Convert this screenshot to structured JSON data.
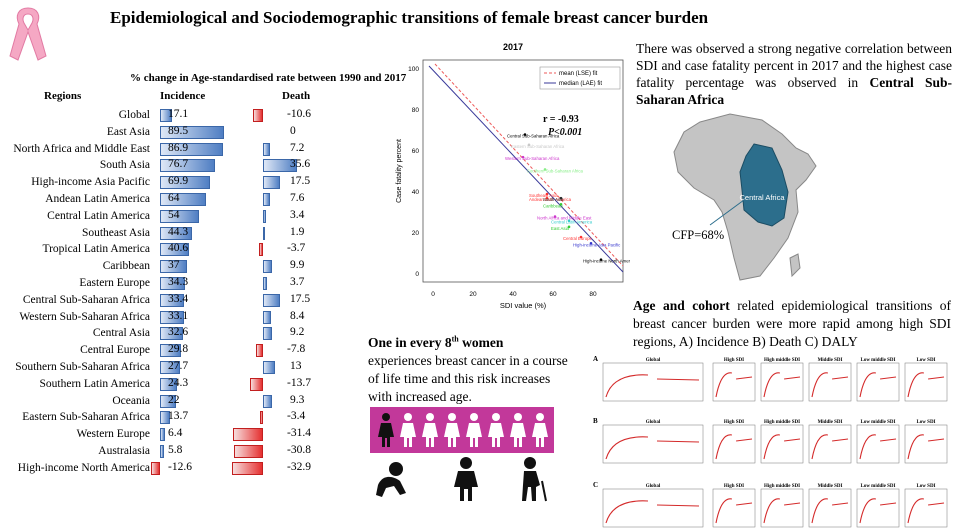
{
  "title": "Epidemiological and Sociodemographic transitions of female breast cancer burden",
  "table": {
    "title": "% change in Age-standardised rate between 1990 and 2017",
    "col_regions": "Regions",
    "col_incidence": "Incidence",
    "col_death": "Death",
    "rows": [
      {
        "region": "Global",
        "incidence": "17.1",
        "death": "-10.6"
      },
      {
        "region": "East Asia",
        "incidence": "89.5",
        "death": "0"
      },
      {
        "region": "North Africa and Middle East",
        "incidence": "86.9",
        "death": "7.2"
      },
      {
        "region": "South Asia",
        "incidence": "76.7",
        "death": "35.6"
      },
      {
        "region": "High-income Asia Pacific",
        "incidence": "69.9",
        "death": "17.5"
      },
      {
        "region": "Andean Latin America",
        "incidence": "64",
        "death": "7.6"
      },
      {
        "region": "Central Latin America",
        "incidence": "54",
        "death": "3.4"
      },
      {
        "region": "Southeast Asia",
        "incidence": "44.3",
        "death": "1.9"
      },
      {
        "region": "Tropical Latin America",
        "incidence": "40.6",
        "death": "-3.7"
      },
      {
        "region": "Caribbean",
        "incidence": "37",
        "death": "9.9"
      },
      {
        "region": "Eastern Europe",
        "incidence": "34.3",
        "death": "3.7"
      },
      {
        "region": "Central Sub-Saharan Africa",
        "incidence": "33.4",
        "death": "17.5"
      },
      {
        "region": "Western Sub-Saharan Africa",
        "incidence": "33.1",
        "death": "8.4"
      },
      {
        "region": "Central Asia",
        "incidence": "32.6",
        "death": "9.2"
      },
      {
        "region": "Central Europe",
        "incidence": "29.8",
        "death": "-7.8"
      },
      {
        "region": "Southern Sub-Saharan Africa",
        "incidence": "27.7",
        "death": "13"
      },
      {
        "region": "Southern Latin America",
        "incidence": "24.3",
        "death": "-13.7"
      },
      {
        "region": "Oceania",
        "incidence": "22",
        "death": "9.3"
      },
      {
        "region": "Eastern Sub-Saharan Africa",
        "incidence": "13.7",
        "death": "-3.4"
      },
      {
        "region": "Western Europe",
        "incidence": "6.4",
        "death": "-31.4"
      },
      {
        "region": "Australasia",
        "incidence": "5.8",
        "death": "-30.8"
      },
      {
        "region": "High-income North America",
        "incidence": "-12.6",
        "death": "-32.9"
      }
    ]
  },
  "scatter": {
    "title": "2017",
    "xlabel": "SDI value (%)",
    "ylabel": "Case fatality percent",
    "xticks": [
      "0",
      "20",
      "40",
      "60",
      "80"
    ],
    "yticks": [
      "0",
      "20",
      "40",
      "60",
      "80",
      "100"
    ],
    "legend": [
      "mean (LSE) fit",
      "median (LAE) fit"
    ],
    "r_text": "r = -0.93",
    "p_text": "P<0.001",
    "points": [
      {
        "label": "Central Sub-Saharan Africa",
        "color": "#000000"
      },
      {
        "label": "Eastern Sub-Saharan Africa",
        "color": "#c8c8c8"
      },
      {
        "label": "Western Sub-Saharan Africa",
        "color": "#cc33cc"
      },
      {
        "label": "Southern Sub-Saharan Africa",
        "color": "#88ee88"
      },
      {
        "label": "Southeast Asia",
        "color": "#ff3333"
      },
      {
        "label": "Andean Latin America",
        "color": "#ff3333"
      },
      {
        "label": "South Asia",
        "color": "#2a2a2a"
      },
      {
        "label": "Caribbean",
        "color": "#33cc33"
      },
      {
        "label": "North Africa and Middle East",
        "color": "#cc33cc"
      },
      {
        "label": "Central Latin America",
        "color": "#33cccc"
      },
      {
        "label": "East Asia",
        "color": "#33cc33"
      },
      {
        "label": "Central Europe",
        "color": "#ff3333"
      },
      {
        "label": "High-income Asia Pacific",
        "color": "#3333cc"
      },
      {
        "label": "High-income North America",
        "color": "#000000"
      }
    ]
  },
  "corr_text": "There was observed a strong negative correlation between SDI and case fatality percent in 2017 and the highest case fatality percentage was observed in",
  "corr_bold": "Central Sub-Saharan Africa",
  "map": {
    "label": "Central Africa",
    "cfp": "CFP=68%",
    "highlight": "#2c6e8c"
  },
  "women_bold_pre": "One in every 8",
  "women_sup": "th",
  "women_bold_post": " women",
  "women_text": "experiences breast cancer in a course of life time and this risk increases with increased age.",
  "age_bold": "Age and cohort",
  "age_text": " related epidemiological transitions of breast cancer burden were more rapid among high SDI regions, A) Incidence B) Death C) DALY",
  "panels": {
    "rows": [
      "A",
      "B",
      "C"
    ],
    "titles": [
      "Global",
      "High SDI",
      "High middle SDI",
      "Middle SDI",
      "Low middle SDI",
      "Low SDI"
    ]
  },
  "colors": {
    "inc": "#4f7ec3",
    "neg": "#e53030",
    "ribbon": "#f5a8c4",
    "people": "#c2389a"
  }
}
